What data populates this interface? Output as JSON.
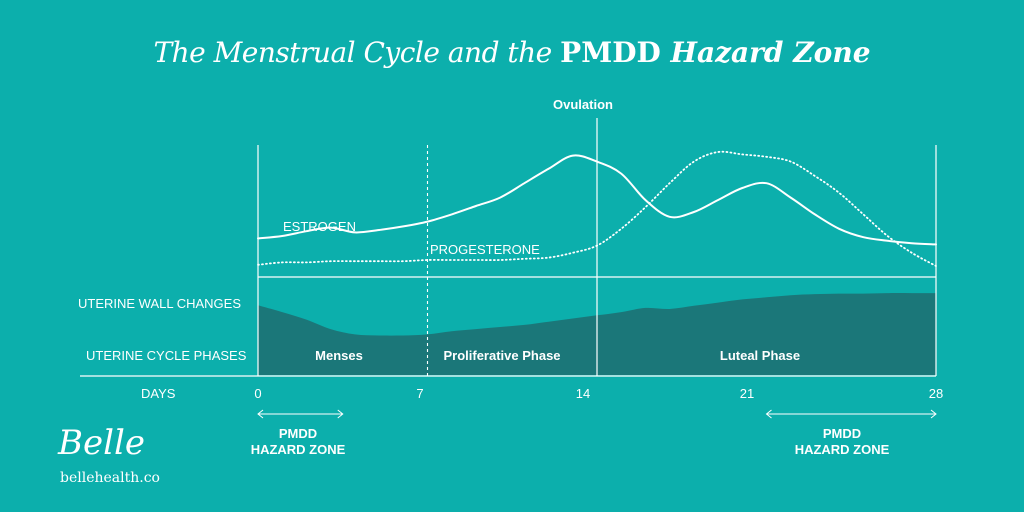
{
  "title": {
    "part1": "The Menstrual Cycle and the ",
    "part2": "PMDD ",
    "part3": "Hazard Zone"
  },
  "ovulation_label": "Ovulation",
  "curve_labels": {
    "estrogen": "ESTROGEN",
    "progesterone": "PROGESTERONE"
  },
  "row_labels": {
    "uterine_wall": "UTERINE WALL CHANGES",
    "uterine_phases": "UTERINE CYCLE PHASES",
    "days": "DAYS"
  },
  "phases": [
    "Menses",
    "Proliferative Phase",
    "Luteal Phase"
  ],
  "day_ticks": [
    "0",
    "7",
    "14",
    "21",
    "28"
  ],
  "hazard_zones": [
    {
      "line1": "PMDD",
      "line2": "HAZARD ZONE"
    },
    {
      "line1": "PMDD",
      "line2": "HAZARD ZONE"
    }
  ],
  "brand": {
    "logo": "Belle",
    "site": "bellehealth.co"
  },
  "colors": {
    "background": "#0cafac",
    "uterine_wall_fill": "#1b7779",
    "lines": "#ffffff"
  },
  "chart_data": {
    "type": "line",
    "x": [
      0,
      1,
      2,
      3,
      4,
      5,
      6,
      7,
      8,
      9,
      10,
      11,
      12,
      13,
      14,
      15,
      16,
      17,
      18,
      19,
      20,
      21,
      22,
      23,
      24,
      25,
      26,
      27,
      28
    ],
    "series": [
      {
        "name": "ESTROGEN",
        "values": [
          0.28,
          0.3,
          0.34,
          0.37,
          0.33,
          0.35,
          0.38,
          0.42,
          0.48,
          0.55,
          0.62,
          0.74,
          0.86,
          0.97,
          0.92,
          0.82,
          0.6,
          0.46,
          0.5,
          0.6,
          0.7,
          0.74,
          0.62,
          0.48,
          0.36,
          0.29,
          0.26,
          0.24,
          0.23
        ]
      },
      {
        "name": "PROGESTERONE",
        "values": [
          0.06,
          0.08,
          0.08,
          0.09,
          0.09,
          0.09,
          0.09,
          0.1,
          0.1,
          0.1,
          0.1,
          0.11,
          0.12,
          0.16,
          0.22,
          0.36,
          0.54,
          0.74,
          0.92,
          1.0,
          0.98,
          0.96,
          0.92,
          0.8,
          0.66,
          0.48,
          0.3,
          0.16,
          0.05
        ]
      },
      {
        "name": "UTERINE WALL CHANGES",
        "values": [
          0.75,
          0.62,
          0.48,
          0.3,
          0.2,
          0.18,
          0.18,
          0.2,
          0.26,
          0.3,
          0.34,
          0.38,
          0.44,
          0.5,
          0.56,
          0.62,
          0.7,
          0.68,
          0.74,
          0.8,
          0.86,
          0.9,
          0.94,
          0.96,
          0.97,
          0.97,
          0.98,
          0.98,
          0.98
        ]
      }
    ],
    "phase_boundaries": [
      7,
      14
    ],
    "ovulation_day": 14,
    "hazard_zones": [
      [
        0,
        3.5
      ],
      [
        21,
        28
      ]
    ],
    "xlim": [
      0,
      28
    ],
    "grid": false
  }
}
